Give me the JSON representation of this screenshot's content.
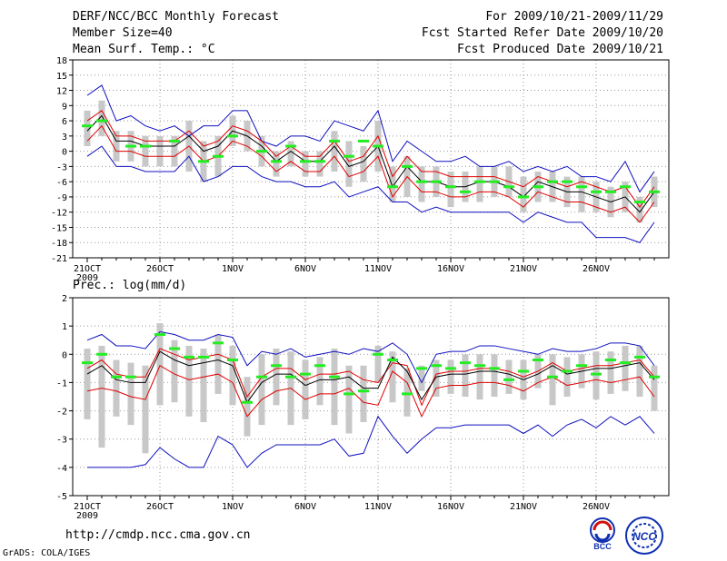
{
  "header": {
    "title": "DERF/NCC/BCC Monthly Forecast",
    "member_size": "Member Size=40",
    "variable": "Mean Surf. Temp.: °C",
    "period": "For 2009/10/21-2009/11/29",
    "started": "Fcst Started Refer Date 2009/10/20",
    "produced": "Fcst Produced Date 2009/10/21"
  },
  "footer": {
    "url": "http://cmdp.ncc.cma.gov.cn",
    "grads": "GrADS: COLA/IGES",
    "logo_bcc": "BCC",
    "logo_ncc": "NCC"
  },
  "colors": {
    "bar": "#c8c8c8",
    "obs": "#22ee22",
    "envelope": "#1010c0",
    "spread": "#e00000",
    "mean": "#000000"
  },
  "chart_data": [
    {
      "type": "line",
      "title": "Mean Surf. Temp.: °C",
      "days": 40,
      "x_tick_labels": [
        "21OCT",
        "26OCT",
        "1NOV",
        "6NOV",
        "11NOV",
        "16NOV",
        "21NOV",
        "26NOV"
      ],
      "x_year_label": "2009",
      "ylim": [
        -21,
        18
      ],
      "yticks": [
        18,
        15,
        12,
        9,
        6,
        3,
        0,
        -3,
        -6,
        -9,
        -12,
        -15,
        -18,
        -21
      ],
      "series": [
        {
          "name": "max",
          "values": [
            11,
            13,
            6,
            7,
            5,
            4,
            5,
            3,
            5,
            5,
            8,
            8,
            2,
            1,
            3,
            3,
            2,
            6,
            5,
            4,
            8,
            -2,
            2,
            0,
            -2,
            -2,
            -1,
            -3,
            -3,
            -2,
            -4,
            -3,
            -4,
            -3,
            -5,
            -5,
            -6,
            -2,
            -8,
            -4
          ]
        },
        {
          "name": "upper",
          "values": [
            6,
            8,
            3,
            3,
            2,
            2,
            2,
            4,
            1,
            2,
            5,
            4,
            2,
            -1,
            1,
            -1,
            -1,
            2,
            -2,
            -1,
            3,
            -5,
            -1,
            -4,
            -4,
            -5,
            -5,
            -5,
            -5,
            -6,
            -7,
            -5,
            -6,
            -7,
            -6,
            -7,
            -8,
            -7,
            -11,
            -7
          ]
        },
        {
          "name": "mean",
          "values": [
            4,
            7,
            2,
            2,
            1,
            1,
            1,
            3,
            0,
            1,
            4,
            3,
            1,
            -2,
            0,
            -2,
            -2,
            1,
            -3,
            -2,
            1,
            -7,
            -3,
            -6,
            -6,
            -7,
            -7,
            -6,
            -6,
            -7,
            -9,
            -6,
            -7,
            -8,
            -8,
            -9,
            -10,
            -9,
            -12,
            -8
          ]
        },
        {
          "name": "lower",
          "values": [
            2,
            5,
            0,
            0,
            -1,
            -1,
            -1,
            1,
            -2,
            -1,
            2,
            1,
            -1,
            -4,
            -2,
            -4,
            -4,
            -1,
            -5,
            -4,
            -1,
            -9,
            -5,
            -8,
            -8,
            -9,
            -9,
            -8,
            -8,
            -9,
            -11,
            -8,
            -9,
            -10,
            -10,
            -11,
            -12,
            -11,
            -14,
            -10
          ]
        },
        {
          "name": "min",
          "values": [
            -1,
            1,
            -3,
            -3,
            -4,
            -4,
            -4,
            -1,
            -6,
            -5,
            -3,
            -3,
            -5,
            -6,
            -6,
            -7,
            -7,
            -6,
            -9,
            -8,
            -7,
            -10,
            -10,
            -12,
            -11,
            -12,
            -12,
            -12,
            -12,
            -12,
            -14,
            -12,
            -13,
            -14,
            -14,
            -17,
            -17,
            -17,
            -18,
            -14
          ]
        },
        {
          "name": "obs",
          "values": [
            5,
            6,
            null,
            1,
            1,
            null,
            2,
            null,
            -2,
            -1,
            3,
            null,
            0,
            -2,
            1,
            -2,
            -2,
            2,
            -1,
            2,
            1,
            -7,
            -3,
            -6,
            -6,
            -7,
            -8,
            -6,
            -6,
            -7,
            -9,
            -7,
            -6,
            -6,
            -7,
            -8,
            -8,
            -7,
            -10,
            -8
          ]
        }
      ],
      "bars": {
        "name": "range",
        "low": [
          1,
          3,
          -2,
          -2,
          -3,
          -3,
          -3,
          -4,
          -6,
          -5,
          1,
          0,
          -3,
          -5,
          -3,
          -5,
          -5,
          -4,
          -7,
          -6,
          -4,
          -10,
          -9,
          -10,
          -9,
          -11,
          -10,
          -10,
          -9,
          -9,
          -12,
          -10,
          -10,
          -11,
          -12,
          -12,
          -13,
          -12,
          -14,
          -11
        ],
        "high": [
          8,
          10,
          4,
          4,
          3,
          3,
          3,
          6,
          2,
          3,
          7,
          6,
          3,
          0,
          2,
          0,
          0,
          4,
          2,
          1,
          6,
          -3,
          -1,
          -3,
          -3,
          -4,
          -4,
          -3,
          -3,
          -3,
          -5,
          -4,
          -4,
          -5,
          -5,
          -6,
          -7,
          -6,
          -9,
          -5
        ]
      }
    },
    {
      "type": "line",
      "title": "Prec.: log(mm/d)",
      "days": 40,
      "x_tick_labels": [
        "21OCT",
        "26OCT",
        "1NOV",
        "6NOV",
        "11NOV",
        "16NOV",
        "21NOV",
        "26NOV"
      ],
      "x_year_label": "2009",
      "ylim": [
        -5,
        2
      ],
      "yticks": [
        2,
        1,
        0,
        -1,
        -2,
        -3,
        -4,
        -5
      ],
      "series": [
        {
          "name": "max",
          "values": [
            0.5,
            0.7,
            0.3,
            0.3,
            0.2,
            0.8,
            0.7,
            0.5,
            0.5,
            0.7,
            0.6,
            -0.4,
            0.1,
            0.0,
            0.2,
            -0.1,
            0.0,
            0.1,
            0.0,
            0.2,
            0.1,
            0.4,
            0.0,
            -1.0,
            0.0,
            0.1,
            0.1,
            0.3,
            0.3,
            0.2,
            0.1,
            0.0,
            0.2,
            0.1,
            0.1,
            0.2,
            0.4,
            0.4,
            0.3,
            -0.4
          ]
        },
        {
          "name": "upper",
          "values": [
            -0.5,
            -0.2,
            -0.7,
            -0.8,
            -0.8,
            0.2,
            0.0,
            -0.2,
            -0.1,
            0.0,
            -0.2,
            -1.5,
            -0.8,
            -0.5,
            -0.5,
            -0.9,
            -0.7,
            -0.7,
            -0.6,
            -0.9,
            -1.0,
            -0.3,
            -0.4,
            -1.8,
            -0.7,
            -0.6,
            -0.6,
            -0.5,
            -0.5,
            -0.6,
            -0.8,
            -0.6,
            -0.3,
            -0.6,
            -0.5,
            -0.4,
            -0.4,
            -0.3,
            -0.2,
            -0.8
          ]
        },
        {
          "name": "mean",
          "values": [
            -0.7,
            -0.4,
            -0.9,
            -1.0,
            -1.0,
            0.1,
            -0.2,
            -0.4,
            -0.3,
            -0.2,
            -0.4,
            -1.7,
            -1.0,
            -0.7,
            -0.7,
            -1.1,
            -0.9,
            -0.9,
            -0.8,
            -1.2,
            -1.2,
            -0.1,
            -0.6,
            -1.6,
            -0.8,
            -0.7,
            -0.7,
            -0.6,
            -0.6,
            -0.7,
            -0.9,
            -0.7,
            -0.4,
            -0.7,
            -0.6,
            -0.5,
            -0.5,
            -0.4,
            -0.3,
            -0.9
          ]
        },
        {
          "name": "lower",
          "values": [
            -1.3,
            -1.2,
            -1.3,
            -1.5,
            -1.6,
            -0.4,
            -0.7,
            -0.9,
            -0.8,
            -0.7,
            -1.0,
            -2.2,
            -1.6,
            -1.3,
            -1.2,
            -1.6,
            -1.4,
            -1.4,
            -1.2,
            -1.7,
            -1.8,
            -0.6,
            -1.0,
            -2.2,
            -1.2,
            -1.1,
            -1.1,
            -1.0,
            -1.0,
            -1.1,
            -1.3,
            -1.0,
            -0.8,
            -1.1,
            -1.0,
            -0.9,
            -1.0,
            -0.9,
            -0.8,
            -1.5
          ]
        },
        {
          "name": "min",
          "values": [
            -4.0,
            -4.0,
            -4.0,
            -4.0,
            -3.9,
            -3.3,
            -3.7,
            -4.0,
            -4.0,
            -2.9,
            -3.2,
            -4.0,
            -3.5,
            -3.2,
            -3.2,
            -3.2,
            -3.2,
            -3.0,
            -3.6,
            -3.5,
            -2.2,
            -2.9,
            -3.5,
            -3.0,
            -2.6,
            -2.6,
            -2.5,
            -2.5,
            -2.5,
            -2.5,
            -2.8,
            -2.5,
            -2.9,
            -2.5,
            -2.3,
            -2.6,
            -2.2,
            -2.5,
            -2.2,
            -2.8
          ]
        },
        {
          "name": "obs",
          "values": [
            -0.3,
            0.0,
            -0.8,
            -0.8,
            null,
            0.7,
            0.2,
            -0.1,
            -0.1,
            0.4,
            -0.2,
            -1.7,
            -0.8,
            -0.4,
            -0.8,
            -0.7,
            -0.4,
            -0.8,
            -1.4,
            -1.3,
            0.0,
            -0.2,
            -1.4,
            -0.5,
            -0.4,
            -0.5,
            -0.3,
            -0.4,
            -0.5,
            -0.9,
            -0.6,
            -0.2,
            -0.8,
            -0.6,
            -0.4,
            -0.7,
            -0.2,
            -0.3,
            -0.1,
            -0.8
          ]
        }
      ],
      "bars": {
        "name": "range",
        "low": [
          -2.3,
          -3.3,
          -2.2,
          -2.5,
          -3.5,
          -1.8,
          -1.7,
          -2.2,
          -2.4,
          -1.4,
          -1.8,
          -2.9,
          -2.5,
          -1.8,
          -2.5,
          -2.3,
          -1.8,
          -2.5,
          -2.8,
          -2.4,
          -1.0,
          -1.7,
          -2.2,
          -1.3,
          -1.5,
          -1.4,
          -1.5,
          -1.6,
          -1.5,
          -1.4,
          -1.6,
          -1.2,
          -1.8,
          -1.5,
          -1.2,
          -1.6,
          -1.4,
          -1.3,
          -1.5,
          -2.0
        ],
        "high": [
          0.2,
          0.3,
          -0.2,
          -0.3,
          -0.4,
          1.1,
          0.5,
          0.3,
          0.2,
          0.7,
          0.3,
          -0.8,
          0.0,
          0.2,
          0.1,
          -0.2,
          -0.1,
          0.2,
          -0.4,
          -0.4,
          0.3,
          0.1,
          -0.5,
          -0.4,
          -0.2,
          -0.2,
          0.0,
          0.0,
          0.0,
          -0.2,
          -0.2,
          0.0,
          0.0,
          -0.1,
          0.0,
          0.1,
          0.1,
          0.3,
          0.3,
          -0.4
        ]
      }
    }
  ]
}
